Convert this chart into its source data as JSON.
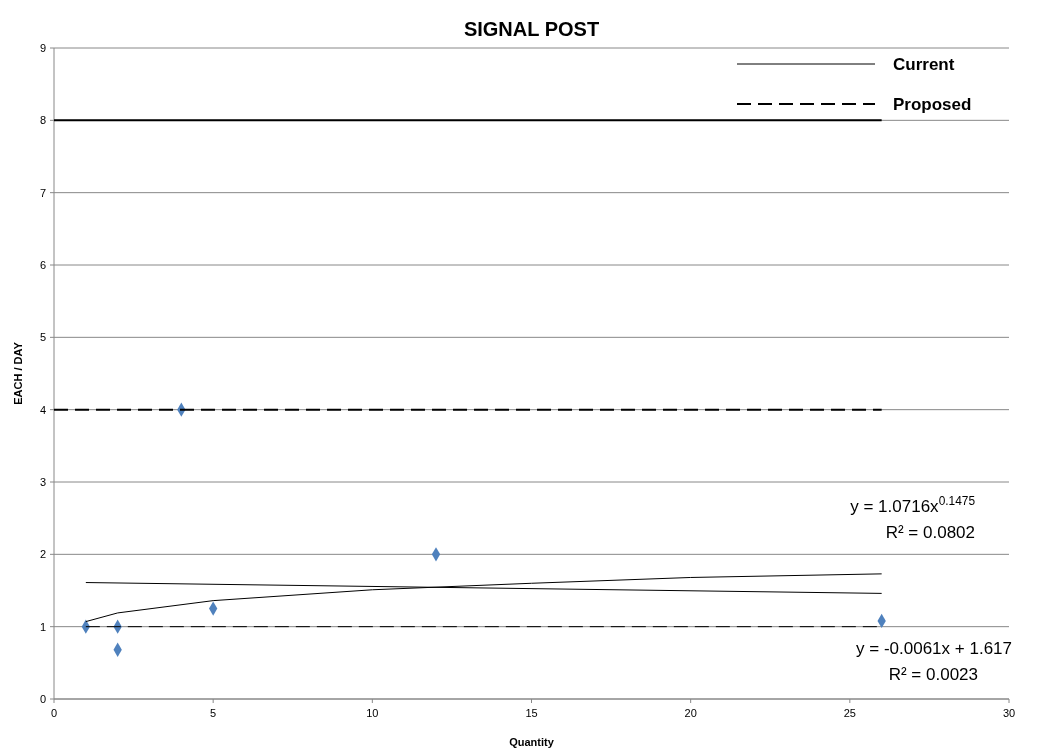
{
  "chart_data": {
    "type": "scatter",
    "title": "SIGNAL POST",
    "xlabel": "Quantity",
    "ylabel": "EACH / DAY",
    "xlim": [
      0,
      30
    ],
    "xticks": [
      0,
      5,
      10,
      15,
      20,
      25,
      30
    ],
    "ylim": [
      0,
      9
    ],
    "yticks": [
      0,
      1,
      2,
      3,
      4,
      5,
      6,
      7,
      8,
      9
    ],
    "grid": "y",
    "legend": "top right",
    "marker": "diamond",
    "series": [
      {
        "color": "#4f81bd",
        "x": [
          1,
          2,
          2,
          4,
          5,
          12,
          26
        ],
        "values": [
          1,
          1,
          0.68,
          4,
          1.25,
          2,
          1.08
        ]
      },
      {
        "type": "line",
        "name": "Current",
        "color": "#000000",
        "line_style": "solid",
        "marker": "none",
        "x": [
          0,
          26
        ],
        "values": [
          8,
          8
        ]
      },
      {
        "type": "line",
        "name": "Proposed",
        "color": "#000000",
        "line_style": "dashed",
        "marker": "none",
        "x": [
          0,
          26
        ],
        "values": [
          4,
          4
        ]
      },
      {
        "type": "line",
        "color": "#000000",
        "line_style": "dashed",
        "marker": "none",
        "x": [
          1,
          26
        ],
        "values": [
          1,
          1
        ]
      },
      {
        "type": "line",
        "color": "#000000",
        "line_style": "solid",
        "marker": "none",
        "x": [
          1,
          2,
          5,
          10,
          15,
          20,
          26
        ],
        "values": [
          1.07,
          1.19,
          1.36,
          1.51,
          1.6,
          1.68,
          1.73
        ]
      },
      {
        "type": "line",
        "color": "#000000",
        "line_style": "solid",
        "marker": "none",
        "x": [
          1,
          26
        ],
        "values": [
          1.61,
          1.46
        ]
      }
    ],
    "annotations": [
      "y = 1.0716x$^{0.1475}$",
      "R² = 0.0802",
      "y = -0.0061x + 1.617",
      "R² = 0.0023"
    ]
  }
}
